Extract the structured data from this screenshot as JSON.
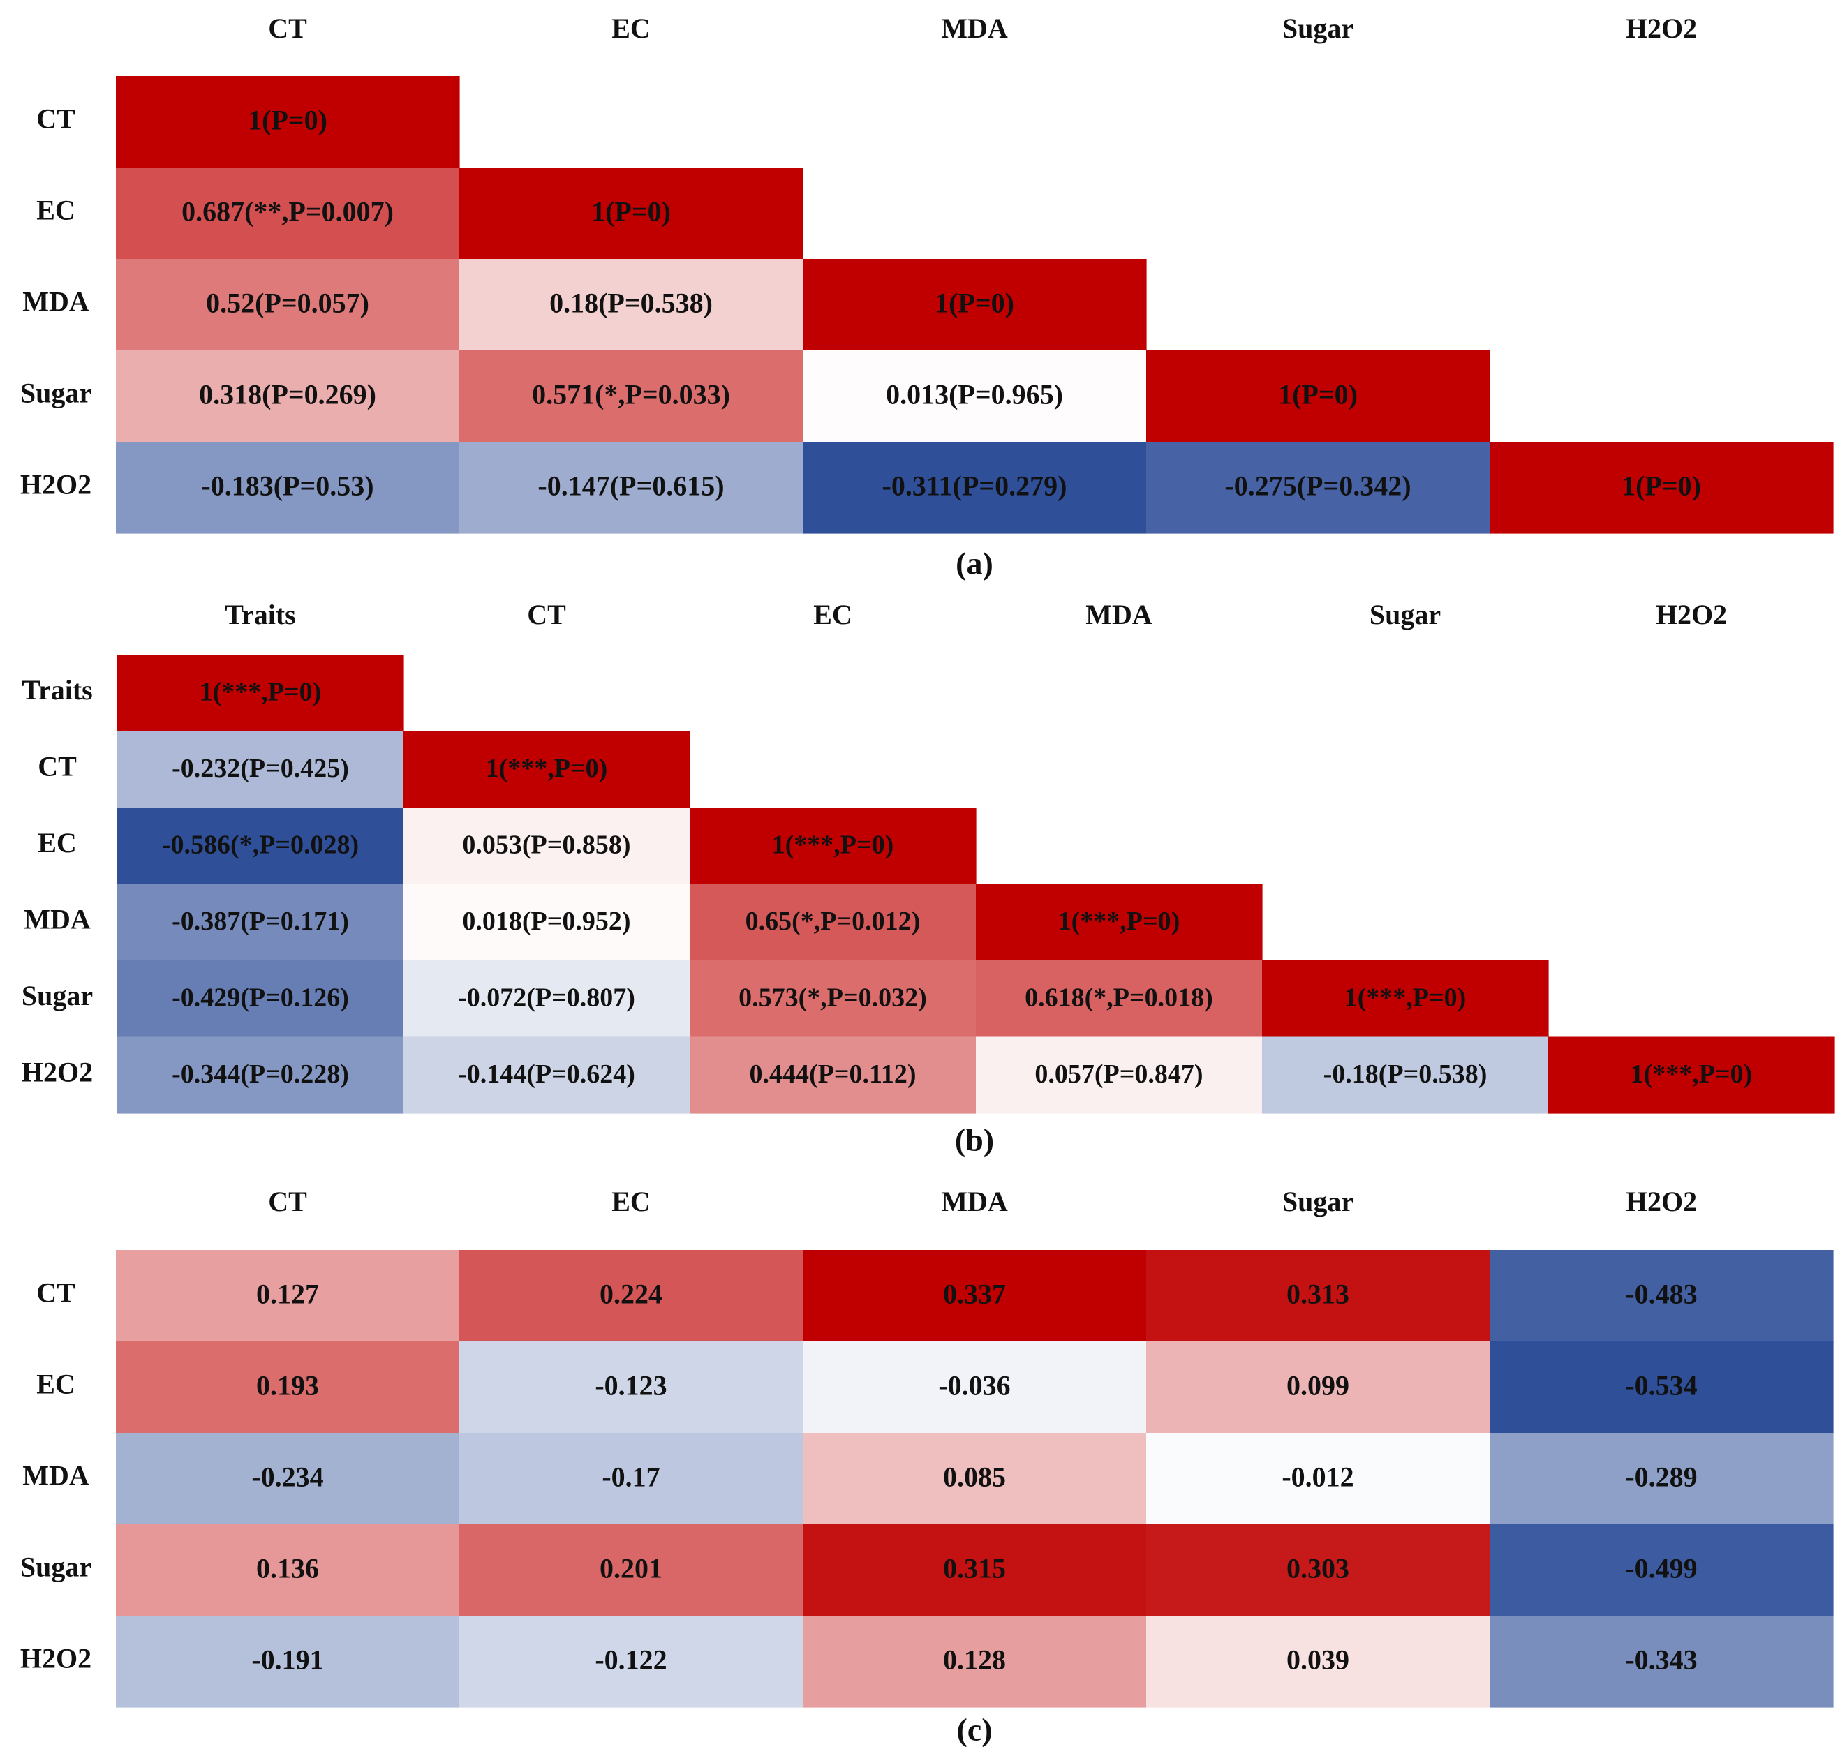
{
  "chart_data": [
    {
      "type": "heatmap",
      "panel_label": "(a)",
      "columns": [
        "CT",
        "EC",
        "MDA",
        "Sugar",
        "H2O2"
      ],
      "rows": [
        "CT",
        "EC",
        "MDA",
        "Sugar",
        "H2O2"
      ],
      "triangular": "lower",
      "values": [
        [
          1,
          null,
          null,
          null,
          null
        ],
        [
          0.687,
          1,
          null,
          null,
          null
        ],
        [
          0.52,
          0.18,
          1,
          null,
          null
        ],
        [
          0.318,
          0.571,
          0.013,
          1,
          null
        ],
        [
          -0.183,
          -0.147,
          -0.311,
          -0.275,
          1
        ]
      ],
      "labels": [
        [
          "1(P=0)",
          null,
          null,
          null,
          null
        ],
        [
          "0.687(**,P=0.007)",
          "1(P=0)",
          null,
          null,
          null
        ],
        [
          "0.52(P=0.057)",
          "0.18(P=0.538)",
          "1(P=0)",
          null,
          null
        ],
        [
          "0.318(P=0.269)",
          "0.571(*,P=0.033)",
          "0.013(P=0.965)",
          "1(P=0)",
          null
        ],
        [
          "-0.183(P=0.53)",
          "-0.147(P=0.615)",
          "-0.311(P=0.279)",
          "-0.275(P=0.342)",
          "1(P=0)"
        ]
      ],
      "color_scale": {
        "pos_max": 1,
        "neg_max": 0.311
      }
    },
    {
      "type": "heatmap",
      "panel_label": "(b)",
      "columns": [
        "Traits",
        "CT",
        "EC",
        "MDA",
        "Sugar",
        "H2O2"
      ],
      "rows": [
        "Traits",
        "CT",
        "EC",
        "MDA",
        "Sugar",
        "H2O2"
      ],
      "triangular": "lower",
      "values": [
        [
          1,
          null,
          null,
          null,
          null,
          null
        ],
        [
          -0.232,
          1,
          null,
          null,
          null,
          null
        ],
        [
          -0.586,
          0.053,
          1,
          null,
          null,
          null
        ],
        [
          -0.387,
          0.018,
          0.65,
          1,
          null,
          null
        ],
        [
          -0.429,
          -0.072,
          0.573,
          0.618,
          1,
          null
        ],
        [
          -0.344,
          -0.144,
          0.444,
          0.057,
          -0.18,
          1
        ]
      ],
      "labels": [
        [
          "1(***,P=0)",
          null,
          null,
          null,
          null,
          null
        ],
        [
          "-0.232(P=0.425)",
          "1(***,P=0)",
          null,
          null,
          null,
          null
        ],
        [
          "-0.586(*,P=0.028)",
          "0.053(P=0.858)",
          "1(***,P=0)",
          null,
          null,
          null
        ],
        [
          "-0.387(P=0.171)",
          "0.018(P=0.952)",
          "0.65(*,P=0.012)",
          "1(***,P=0)",
          null,
          null
        ],
        [
          "-0.429(P=0.126)",
          "-0.072(P=0.807)",
          "0.573(*,P=0.032)",
          "0.618(*,P=0.018)",
          "1(***,P=0)",
          null
        ],
        [
          "-0.344(P=0.228)",
          "-0.144(P=0.624)",
          "0.444(P=0.112)",
          "0.057(P=0.847)",
          "-0.18(P=0.538)",
          "1(***,P=0)"
        ]
      ],
      "color_scale": {
        "pos_max": 1,
        "neg_max": 0.586
      }
    },
    {
      "type": "heatmap",
      "panel_label": "(c)",
      "columns": [
        "CT",
        "EC",
        "MDA",
        "Sugar",
        "H2O2"
      ],
      "rows": [
        "CT",
        "EC",
        "MDA",
        "Sugar",
        "H2O2"
      ],
      "triangular": "none",
      "values": [
        [
          0.127,
          0.224,
          0.337,
          0.313,
          -0.483
        ],
        [
          0.193,
          -0.123,
          -0.036,
          0.099,
          -0.534
        ],
        [
          -0.234,
          -0.17,
          0.085,
          -0.012,
          -0.289
        ],
        [
          0.136,
          0.201,
          0.315,
          0.303,
          -0.499
        ],
        [
          -0.191,
          -0.122,
          0.128,
          0.039,
          -0.343
        ]
      ],
      "labels": [
        [
          "0.127",
          "0.224",
          "0.337",
          "0.313",
          "-0.483"
        ],
        [
          "0.193",
          "-0.123",
          "-0.036",
          "0.099",
          "-0.534"
        ],
        [
          "-0.234",
          "-0.17",
          "0.085",
          "-0.012",
          "-0.289"
        ],
        [
          "0.136",
          "0.201",
          "0.315",
          "0.303",
          "-0.499"
        ],
        [
          "-0.191",
          "-0.122",
          "0.128",
          "0.039",
          "-0.343"
        ]
      ],
      "color_scale": {
        "pos_max": 0.337,
        "neg_max": 0.534
      }
    }
  ],
  "colors": {
    "positive": "#c00000",
    "neutral": "#ffffff",
    "negative": "#2f4f99"
  }
}
